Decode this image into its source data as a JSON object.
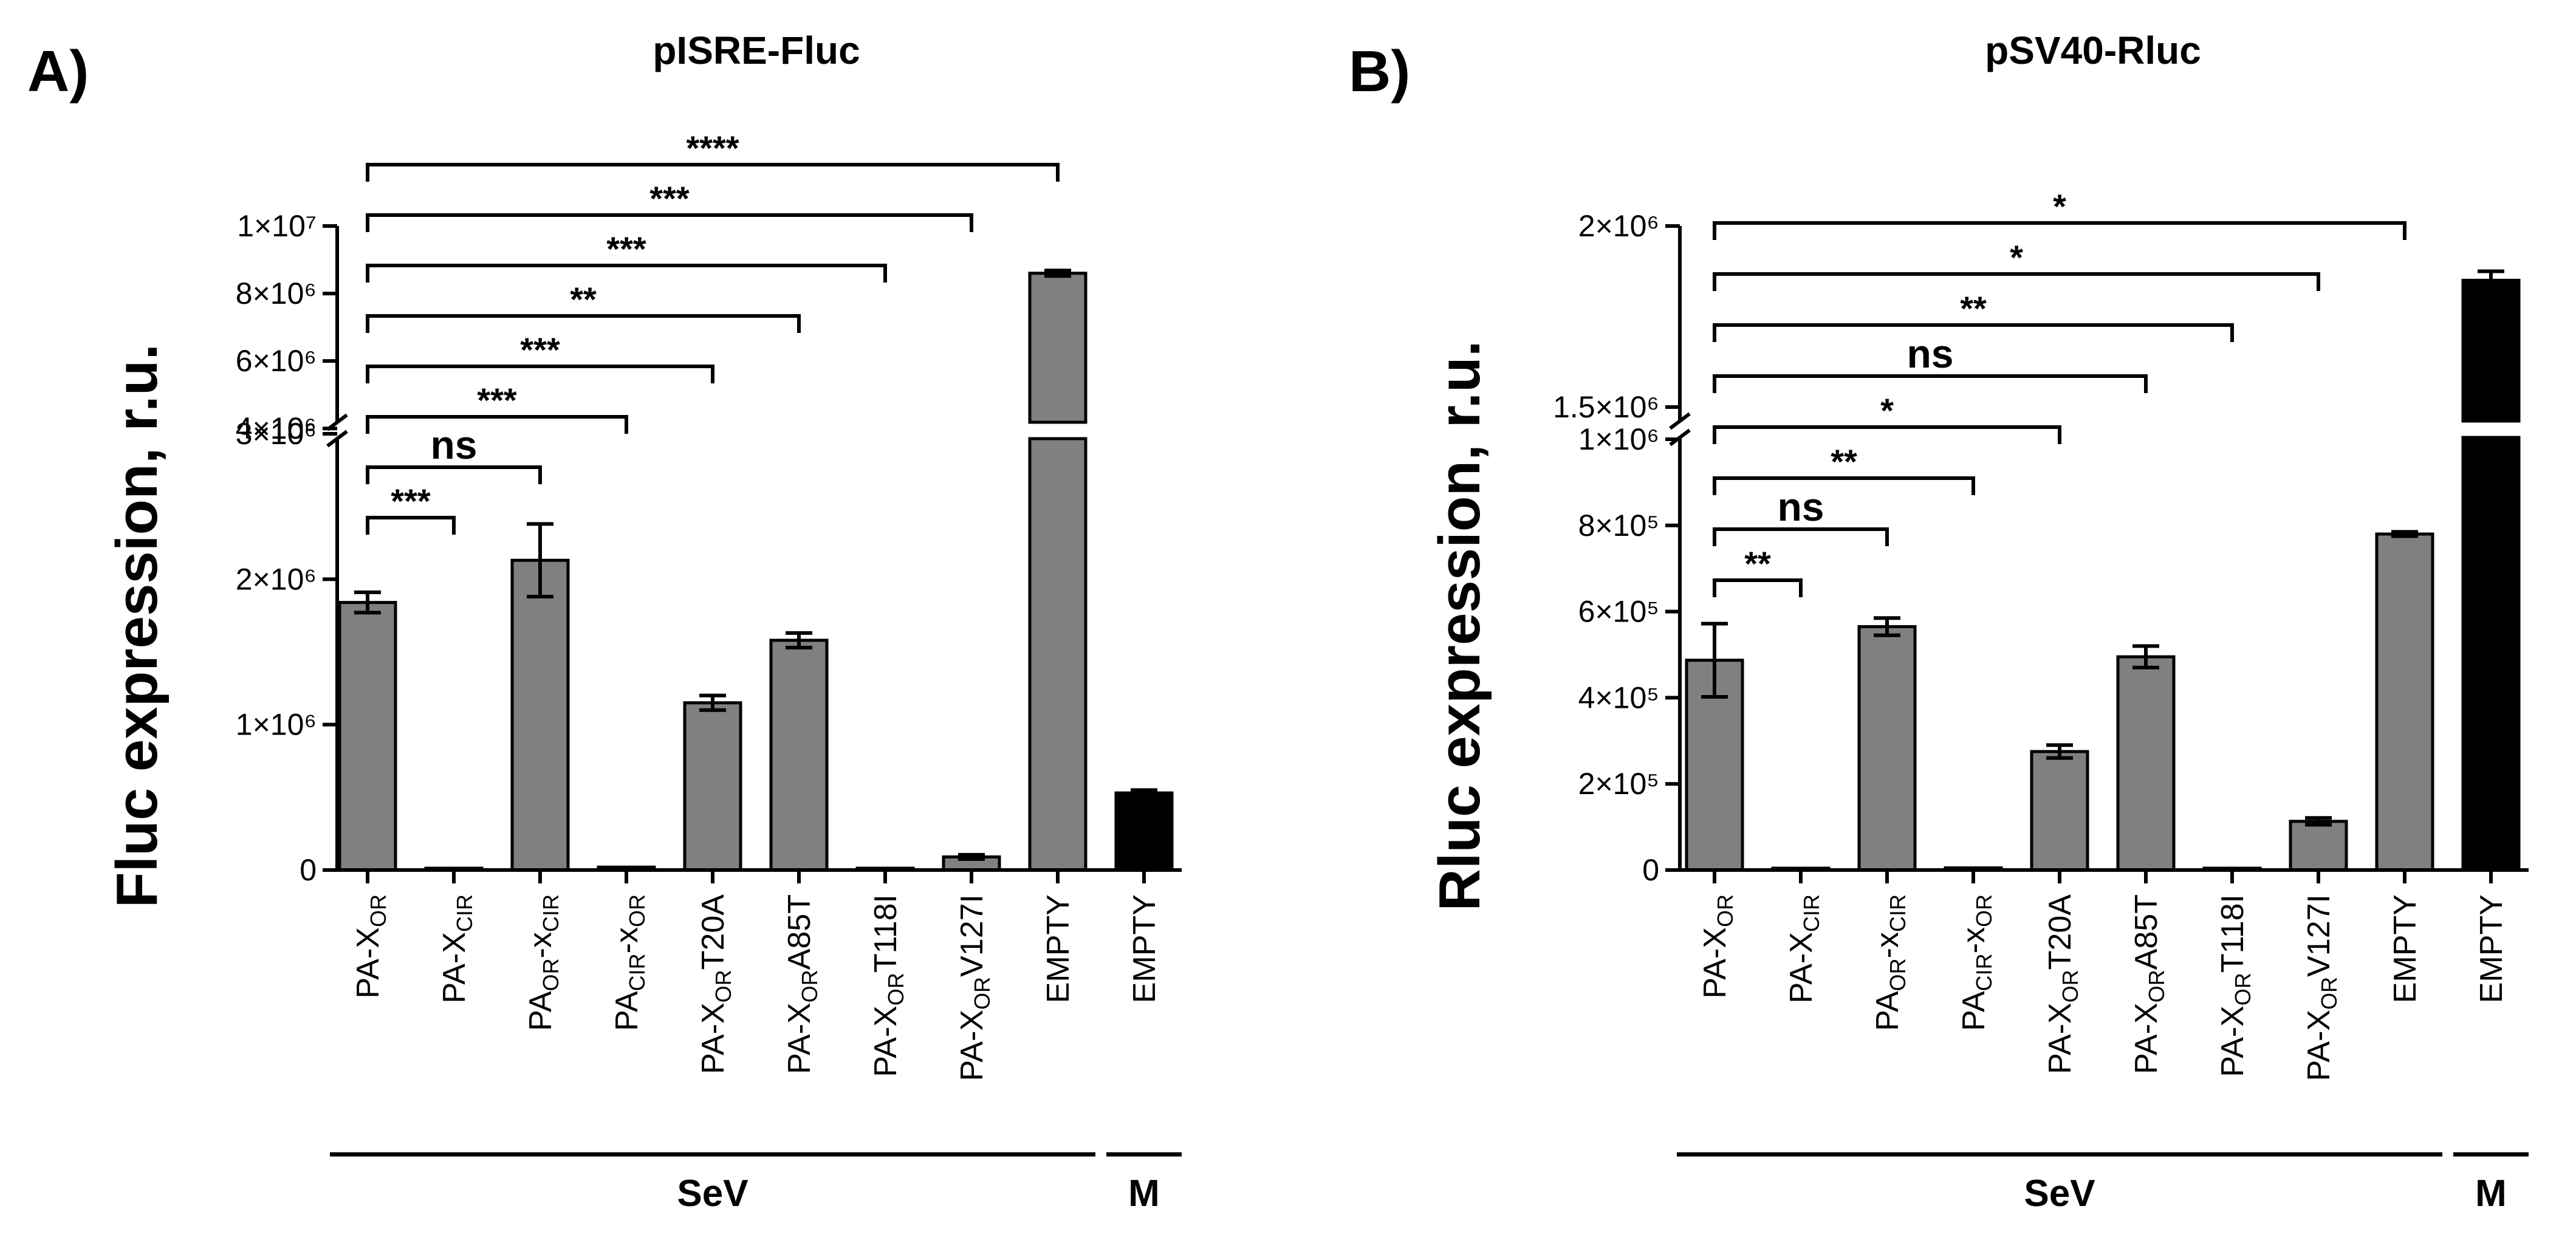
{
  "chart_data": [
    {
      "type": "bar",
      "panel_label": "A)",
      "title": "pISRE-Fluc",
      "ylabel": "Fluc expression, r.u.",
      "xlabel": "",
      "broken_axis": true,
      "lower_range": [
        0,
        3000000
      ],
      "upper_range": [
        3500000,
        10000000
      ],
      "yticks_lower": [
        {
          "value": 0,
          "label": "0"
        },
        {
          "value": 1000000,
          "label": "1×10⁶"
        },
        {
          "value": 2000000,
          "label": "2×10⁶"
        },
        {
          "value": 3000000,
          "label": "3×10⁶"
        }
      ],
      "yticks_upper": [
        {
          "value": 4000000,
          "label": "4×10⁶"
        },
        {
          "value": 6000000,
          "label": "6×10⁶"
        },
        {
          "value": 8000000,
          "label": "8×10⁶"
        },
        {
          "value": 10000000,
          "label": "1×10⁷"
        }
      ],
      "categories": [
        {
          "base": "PA-X",
          "sub": "OR",
          "after": ""
        },
        {
          "base": "PA-X",
          "sub": "CIR",
          "after": ""
        },
        {
          "base": "PA",
          "sub": "OR",
          "after": "-x",
          "sub2": "CIR"
        },
        {
          "base": "PA",
          "sub": "CIR",
          "after": "-x",
          "sub2": "OR"
        },
        {
          "base": "PA-X",
          "sub": "OR",
          "after": "T20A"
        },
        {
          "base": "PA-X",
          "sub": "OR",
          "after": "A85T"
        },
        {
          "base": "PA-X",
          "sub": "OR",
          "after": "T118I"
        },
        {
          "base": "PA-X",
          "sub": "OR",
          "after": "V127I"
        },
        {
          "base": "EMPTY",
          "sub": "",
          "after": ""
        },
        {
          "base": "EMPTY",
          "sub": "",
          "after": ""
        }
      ],
      "values": [
        1840000,
        8000,
        2130000,
        20000,
        1150000,
        1580000,
        5000,
        90000,
        8600000,
        530000
      ],
      "errors": [
        70000,
        2000,
        250000,
        5000,
        50000,
        50000,
        2000,
        15000,
        80000,
        20000
      ],
      "colors": [
        "#808080",
        "#808080",
        "#808080",
        "#808080",
        "#808080",
        "#808080",
        "#808080",
        "#808080",
        "#808080",
        "#000000"
      ],
      "groups": [
        {
          "label": "SeV",
          "from": 0,
          "to": 8
        },
        {
          "label": "M",
          "from": 9,
          "to": 9
        }
      ],
      "comparisons": [
        {
          "from": 0,
          "to": 1,
          "label": "***",
          "level": 0
        },
        {
          "from": 0,
          "to": 2,
          "label": "ns",
          "level": 1
        },
        {
          "from": 0,
          "to": 3,
          "label": "***",
          "level": 2
        },
        {
          "from": 0,
          "to": 4,
          "label": "***",
          "level": 3
        },
        {
          "from": 0,
          "to": 5,
          "label": "**",
          "level": 4
        },
        {
          "from": 0,
          "to": 6,
          "label": "***",
          "level": 5
        },
        {
          "from": 0,
          "to": 7,
          "label": "***",
          "level": 6
        },
        {
          "from": 0,
          "to": 8,
          "label": "****",
          "level": 7
        }
      ]
    },
    {
      "type": "bar",
      "panel_label": "B)",
      "title": "pSV40-Rluc",
      "ylabel": "Rluc expression, r.u.",
      "xlabel": "",
      "broken_axis": true,
      "lower_range": [
        0,
        1000000
      ],
      "upper_range": [
        1500000,
        2000000
      ],
      "yticks_lower": [
        {
          "value": 0,
          "label": "0"
        },
        {
          "value": 200000,
          "label": "2×10⁵"
        },
        {
          "value": 400000,
          "label": "4×10⁵"
        },
        {
          "value": 600000,
          "label": "6×10⁵"
        },
        {
          "value": 800000,
          "label": "8×10⁵"
        },
        {
          "value": 1000000,
          "label": "1×10⁶"
        }
      ],
      "yticks_upper": [
        {
          "value": 1500000,
          "label": "1.5×10⁶"
        },
        {
          "value": 2000000,
          "label": "2×10⁶"
        }
      ],
      "categories": [
        {
          "base": "PA-X",
          "sub": "OR",
          "after": ""
        },
        {
          "base": "PA-X",
          "sub": "CIR",
          "after": ""
        },
        {
          "base": "PA",
          "sub": "OR",
          "after": "-x",
          "sub2": "CIR"
        },
        {
          "base": "PA",
          "sub": "CIR",
          "after": "-x",
          "sub2": "OR"
        },
        {
          "base": "PA-X",
          "sub": "OR",
          "after": "T20A"
        },
        {
          "base": "PA-X",
          "sub": "OR",
          "after": "A85T"
        },
        {
          "base": "PA-X",
          "sub": "OR",
          "after": "T118I"
        },
        {
          "base": "PA-X",
          "sub": "OR",
          "after": "V127I"
        },
        {
          "base": "EMPTY",
          "sub": "",
          "after": ""
        },
        {
          "base": "EMPTY",
          "sub": "",
          "after": ""
        }
      ],
      "values": [
        487000,
        3000,
        565000,
        5000,
        275000,
        495000,
        3000,
        113000,
        780000,
        1850000
      ],
      "errors": [
        85000,
        1000,
        20000,
        2000,
        15000,
        25000,
        1000,
        8000,
        5000,
        25000
      ],
      "colors": [
        "#808080",
        "#808080",
        "#808080",
        "#808080",
        "#808080",
        "#808080",
        "#808080",
        "#808080",
        "#808080",
        "#000000"
      ],
      "groups": [
        {
          "label": "SeV",
          "from": 0,
          "to": 8
        },
        {
          "label": "M",
          "from": 9,
          "to": 9
        }
      ],
      "comparisons": [
        {
          "from": 0,
          "to": 1,
          "label": "**",
          "level": 0
        },
        {
          "from": 0,
          "to": 2,
          "label": "ns",
          "level": 1
        },
        {
          "from": 0,
          "to": 3,
          "label": "**",
          "level": 2
        },
        {
          "from": 0,
          "to": 4,
          "label": "*",
          "level": 3
        },
        {
          "from": 0,
          "to": 5,
          "label": "ns",
          "level": 4
        },
        {
          "from": 0,
          "to": 6,
          "label": "**",
          "level": 5
        },
        {
          "from": 0,
          "to": 7,
          "label": "*",
          "level": 6
        },
        {
          "from": 0,
          "to": 8,
          "label": "*",
          "level": 7
        }
      ]
    }
  ]
}
